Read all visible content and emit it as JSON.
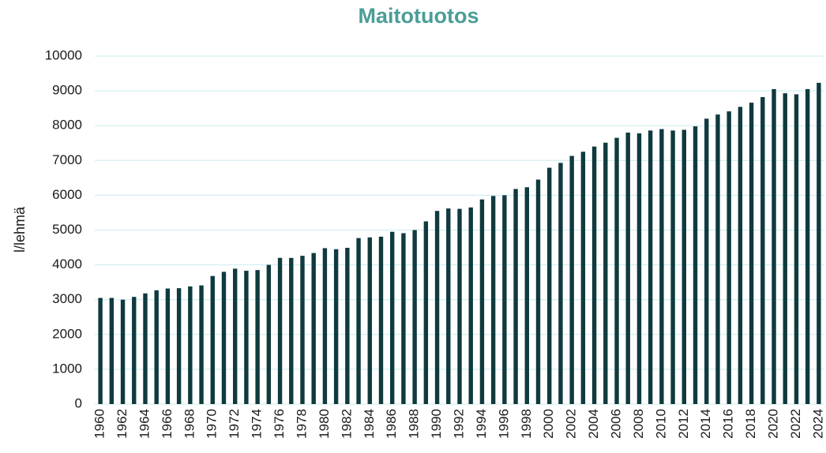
{
  "chart_data": {
    "type": "bar",
    "title": "Maitotuotos",
    "ylabel": "l/lehmä",
    "categories": [
      "1960",
      null,
      "1962",
      null,
      "1964",
      null,
      "1966",
      null,
      "1968",
      null,
      "1970",
      null,
      "1972",
      null,
      "1974",
      null,
      "1976",
      null,
      "1978",
      null,
      "1980",
      null,
      "1982",
      null,
      "1984",
      null,
      "1986",
      null,
      "1988",
      null,
      "1990",
      null,
      "1992",
      null,
      "1994",
      null,
      "1996",
      null,
      "1998",
      null,
      "2000",
      null,
      "2002",
      null,
      "2004",
      null,
      "2006",
      null,
      "2008",
      null,
      "2010",
      null,
      "2012",
      null,
      "2014",
      null,
      "2016",
      null,
      "2018",
      null,
      "2020",
      null,
      "2022",
      null,
      "2024"
    ],
    "values": [
      3050,
      3050,
      3000,
      3080,
      3180,
      3270,
      3320,
      3330,
      3380,
      3410,
      3680,
      3800,
      3890,
      3830,
      3850,
      4000,
      4200,
      4200,
      4260,
      4340,
      4480,
      4450,
      4490,
      4770,
      4790,
      4810,
      4950,
      4910,
      5000,
      5250,
      5550,
      5620,
      5610,
      5650,
      5880,
      5980,
      6000,
      6180,
      6230,
      6450,
      6790,
      6930,
      7130,
      7250,
      7400,
      7510,
      7650,
      7800,
      7780,
      7860,
      7900,
      7860,
      7880,
      7980,
      8200,
      8320,
      8410,
      8540,
      8660,
      8820,
      9050,
      8930,
      8900,
      9050,
      9230
    ],
    "color": "#0f3a3e",
    "ylim": [
      0,
      10000
    ],
    "yticks": [
      0,
      1000,
      2000,
      3000,
      4000,
      5000,
      6000,
      7000,
      8000,
      9000,
      10000
    ],
    "grid": true
  }
}
